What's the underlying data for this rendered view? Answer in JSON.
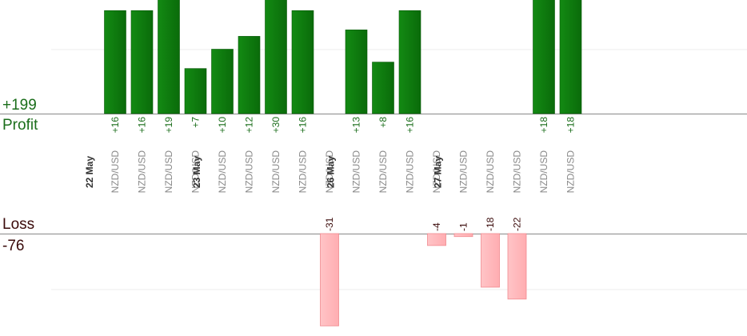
{
  "summary": {
    "profit_total": "+199",
    "profit_label": "Profit",
    "loss_label": "Loss",
    "loss_total": "-76"
  },
  "colors": {
    "profit_bar": "#0a6b0a",
    "profit_bar_light": "#138a13",
    "profit_text": "#1b6e1b",
    "loss_bar": "#ffb6b9",
    "loss_bar_edge": "#f08a8f",
    "loss_text": "#3a0a0a",
    "pair_text": "#888888",
    "axis": "#888888",
    "grid": "#eeeeee"
  },
  "chart_data": {
    "type": "bar",
    "profit_ylim": [
      0,
      36
    ],
    "loss_ylim": [
      0,
      -31
    ],
    "trades": [
      {
        "pair": "NZD/USD",
        "value": 16,
        "label": "+16",
        "date": "22 May"
      },
      {
        "pair": "NZD/USD",
        "value": 16,
        "label": "+16"
      },
      {
        "pair": "NZD/USD",
        "value": 19,
        "label": "+19"
      },
      {
        "pair": "NZD/USD",
        "value": 7,
        "label": "+7"
      },
      {
        "pair": "NZD/USD",
        "value": 10,
        "label": "+10",
        "date": "23 May"
      },
      {
        "pair": "NZD/USD",
        "value": 12,
        "label": "+12"
      },
      {
        "pair": "NZD/USD",
        "value": 30,
        "label": "+30"
      },
      {
        "pair": "NZD/USD",
        "value": 16,
        "label": "+16"
      },
      {
        "pair": "NZD/USD",
        "value": -31,
        "label": "-31"
      },
      {
        "pair": "NZD/USD",
        "value": 13,
        "label": "+13",
        "date": "26 May"
      },
      {
        "pair": "NZD/USD",
        "value": 8,
        "label": "+8"
      },
      {
        "pair": "NZD/USD",
        "value": 16,
        "label": "+16"
      },
      {
        "pair": "NZD/USD",
        "value": -4,
        "label": "-4"
      },
      {
        "pair": "NZD/USD",
        "value": -1,
        "label": "-1",
        "date": "27 May"
      },
      {
        "pair": "NZD/USD",
        "value": -18,
        "label": "-18"
      },
      {
        "pair": "NZD/USD",
        "value": -22,
        "label": "-22"
      },
      {
        "pair": "NZD/USD",
        "value": 18,
        "label": "+18"
      },
      {
        "pair": "NZD/USD",
        "value": 18,
        "label": "+18"
      }
    ]
  }
}
